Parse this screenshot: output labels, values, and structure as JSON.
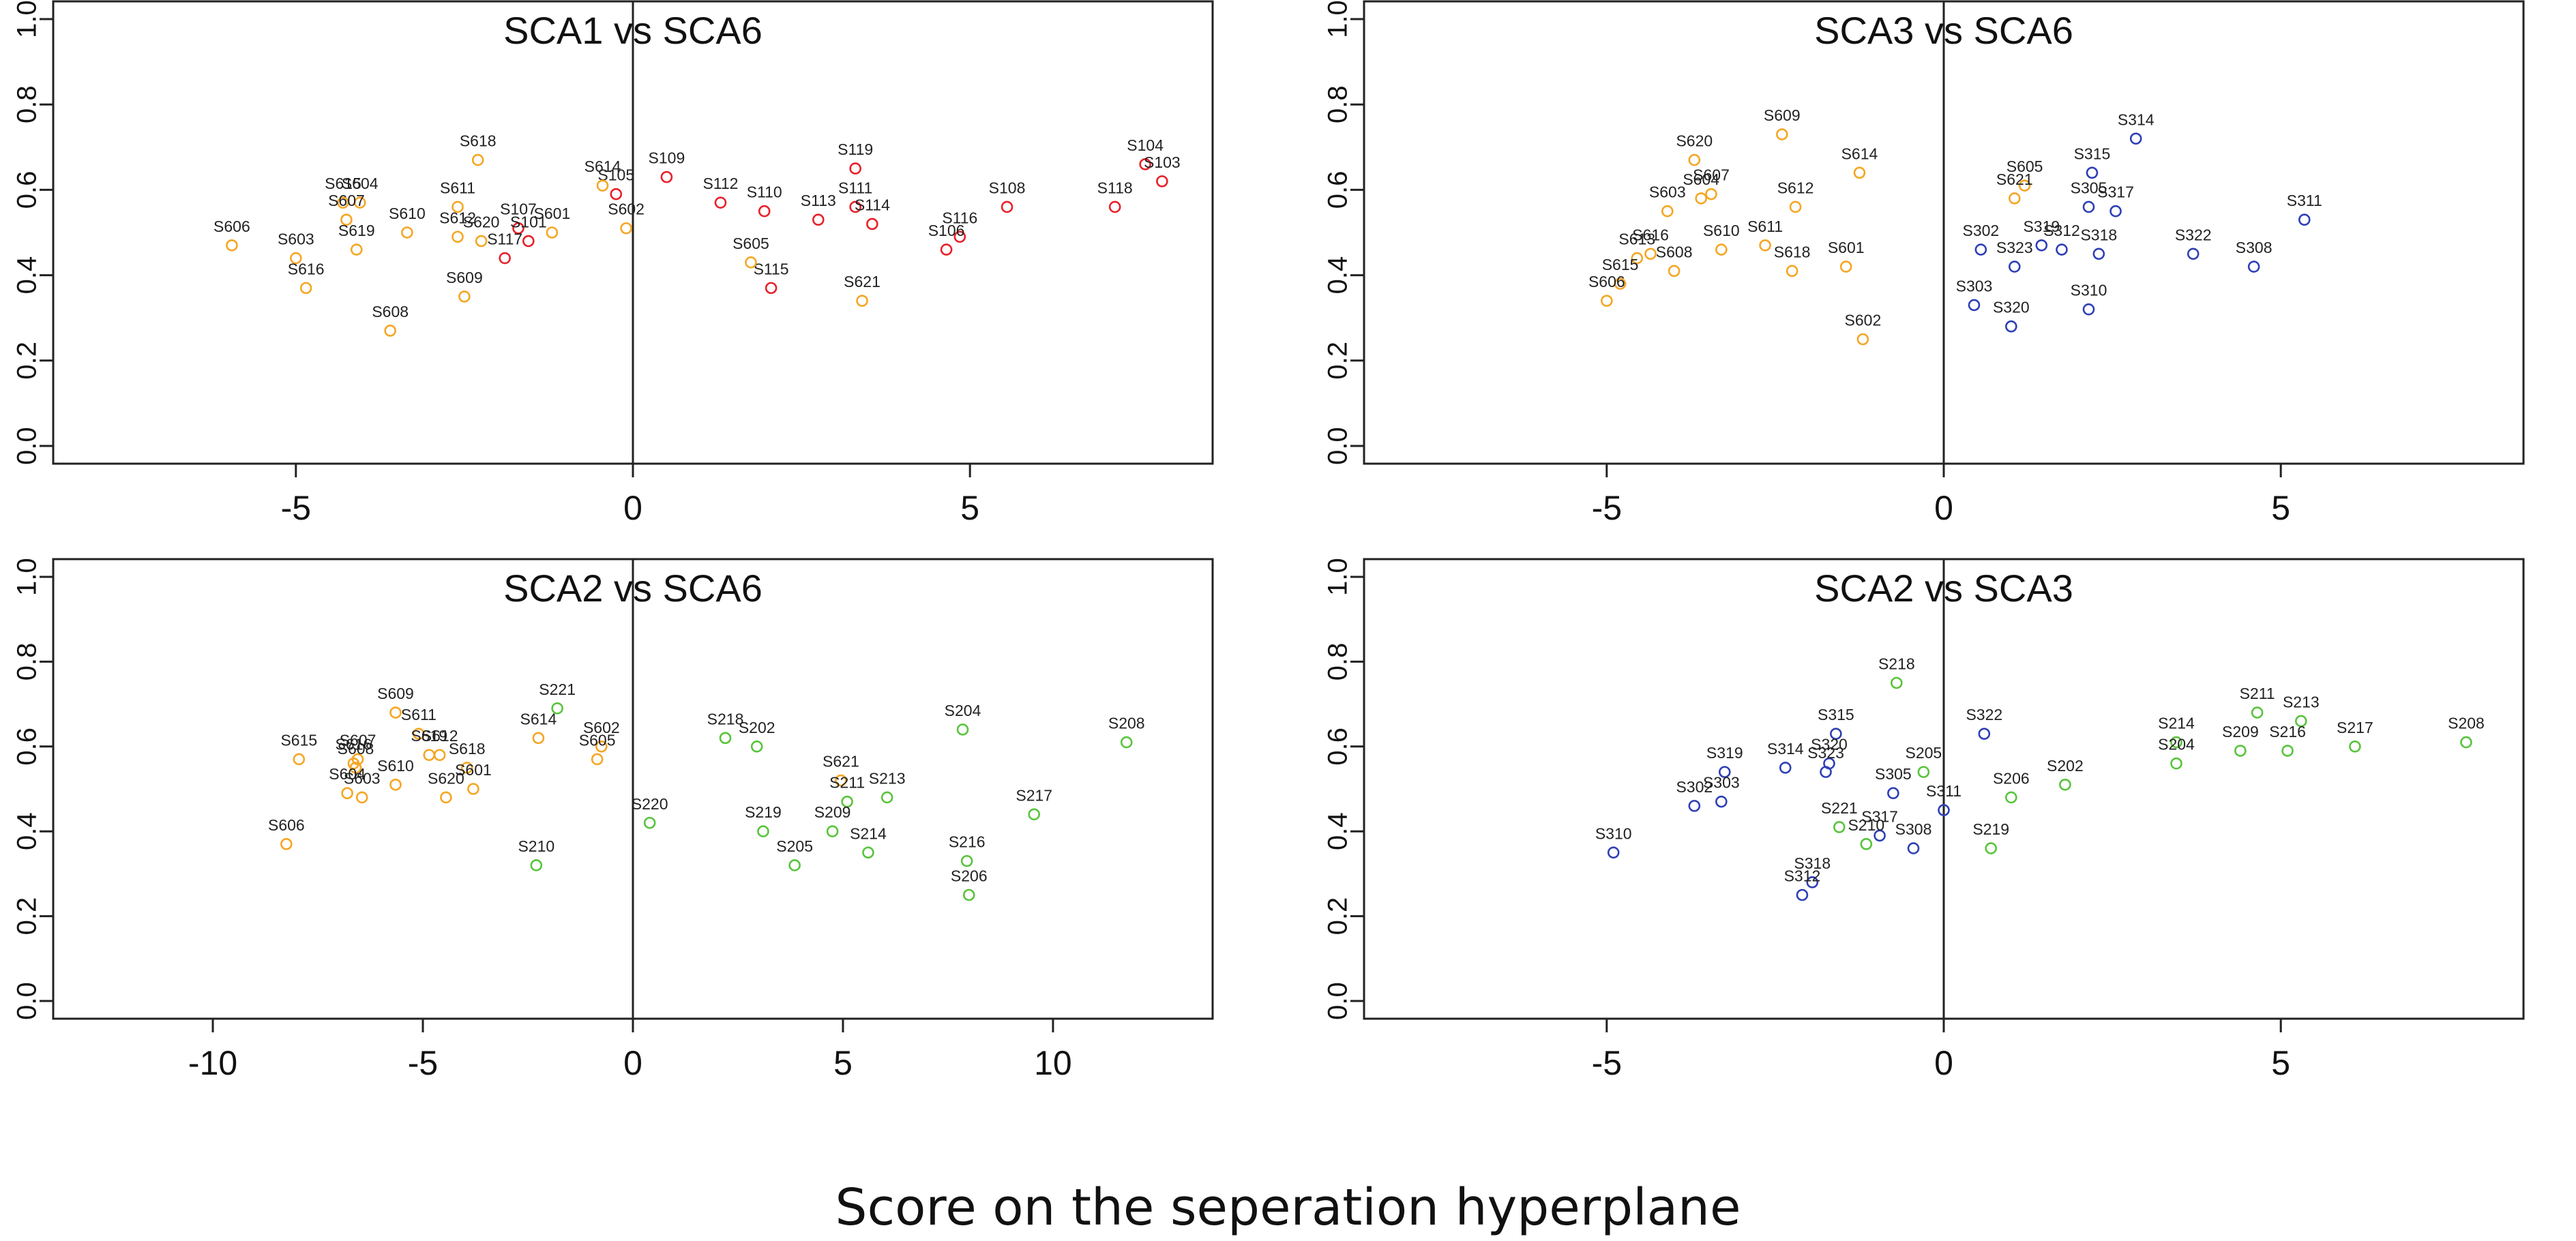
{
  "figure": {
    "xlabel": "Score on the seperation hyperplane",
    "colors": {
      "SCA1": "#e8202a",
      "SCA2": "#57c43a",
      "SCA3": "#2e3fb5",
      "SCA6": "#f5a623",
      "axis": "#222222"
    }
  },
  "chart_data": [
    {
      "type": "scatter",
      "title": "SCA1 vs SCA6",
      "xlim": [
        -8.6,
        8.6
      ],
      "ylim": [
        0,
        1
      ],
      "xticks": [
        -5,
        0,
        5
      ],
      "yticks": [
        0.0,
        0.2,
        0.4,
        0.6,
        0.8,
        1.0
      ],
      "ytick_labels": [
        "0.0",
        "0.2",
        "0.4",
        "0.6",
        "0.8",
        "1.0"
      ],
      "divider_x": 0,
      "series": [
        {
          "name": "SCA1",
          "color": "#e8202a",
          "points": [
            {
              "label": "S109",
              "x": 0.5,
              "y": 0.63
            },
            {
              "label": "S105",
              "x": -0.25,
              "y": 0.59
            },
            {
              "label": "S112",
              "x": 1.3,
              "y": 0.57
            },
            {
              "label": "S110",
              "x": 1.95,
              "y": 0.55
            },
            {
              "label": "S113",
              "x": 2.75,
              "y": 0.53
            },
            {
              "label": "S119",
              "x": 3.3,
              "y": 0.65
            },
            {
              "label": "S111",
              "x": 3.3,
              "y": 0.56
            },
            {
              "label": "S114",
              "x": 3.55,
              "y": 0.52
            },
            {
              "label": "S115",
              "x": 2.05,
              "y": 0.37
            },
            {
              "label": "S116",
              "x": 4.85,
              "y": 0.49
            },
            {
              "label": "S106",
              "x": 4.65,
              "y": 0.46
            },
            {
              "label": "S108",
              "x": 5.55,
              "y": 0.56
            },
            {
              "label": "S118",
              "x": 7.15,
              "y": 0.56
            },
            {
              "label": "S104",
              "x": 7.6,
              "y": 0.66
            },
            {
              "label": "S103",
              "x": 7.85,
              "y": 0.62
            },
            {
              "label": "S107",
              "x": -1.7,
              "y": 0.51
            },
            {
              "label": "S101",
              "x": -1.55,
              "y": 0.48
            },
            {
              "label": "S117",
              "x": -1.9,
              "y": 0.44
            }
          ]
        },
        {
          "name": "SCA6",
          "color": "#f5a623",
          "points": [
            {
              "label": "S606",
              "x": -5.95,
              "y": 0.47
            },
            {
              "label": "S603",
              "x": -5.0,
              "y": 0.44
            },
            {
              "label": "S616",
              "x": -4.85,
              "y": 0.37
            },
            {
              "label": "S615",
              "x": -4.3,
              "y": 0.57
            },
            {
              "label": "S604",
              "x": -4.05,
              "y": 0.57
            },
            {
              "label": "S607",
              "x": -4.25,
              "y": 0.53
            },
            {
              "label": "S619",
              "x": -4.1,
              "y": 0.46
            },
            {
              "label": "S608",
              "x": -3.6,
              "y": 0.27
            },
            {
              "label": "S610",
              "x": -3.35,
              "y": 0.5
            },
            {
              "label": "S611",
              "x": -2.6,
              "y": 0.56
            },
            {
              "label": "S618",
              "x": -2.3,
              "y": 0.67
            },
            {
              "label": "S612",
              "x": -2.6,
              "y": 0.49
            },
            {
              "label": "S620",
              "x": -2.25,
              "y": 0.48
            },
            {
              "label": "S609",
              "x": -2.5,
              "y": 0.35
            },
            {
              "label": "S601",
              "x": -1.2,
              "y": 0.5
            },
            {
              "label": "S614",
              "x": -0.45,
              "y": 0.61
            },
            {
              "label": "S602",
              "x": -0.1,
              "y": 0.51
            },
            {
              "label": "S605",
              "x": 1.75,
              "y": 0.43
            },
            {
              "label": "S621",
              "x": 3.4,
              "y": 0.34
            }
          ]
        }
      ]
    },
    {
      "type": "scatter",
      "title": "SCA3 vs SCA6",
      "xlim": [
        -8.6,
        8.6
      ],
      "ylim": [
        0,
        1
      ],
      "xticks": [
        -5,
        0,
        5
      ],
      "yticks": [
        0.0,
        0.2,
        0.4,
        0.6,
        0.8,
        1.0
      ],
      "ytick_labels": [
        "0.0",
        "0.2",
        "0.4",
        "0.6",
        "0.8",
        "1.0"
      ],
      "divider_x": 0,
      "series": [
        {
          "name": "SCA6",
          "color": "#f5a623",
          "points": [
            {
              "label": "S620",
              "x": -3.7,
              "y": 0.67
            },
            {
              "label": "S604",
              "x": -3.6,
              "y": 0.58
            },
            {
              "label": "S607",
              "x": -3.45,
              "y": 0.59
            },
            {
              "label": "S603",
              "x": -4.1,
              "y": 0.55
            },
            {
              "label": "S609",
              "x": -2.4,
              "y": 0.73
            },
            {
              "label": "S612",
              "x": -2.2,
              "y": 0.56
            },
            {
              "label": "S614",
              "x": -1.25,
              "y": 0.64
            },
            {
              "label": "S616",
              "x": -4.35,
              "y": 0.45
            },
            {
              "label": "S613",
              "x": -4.55,
              "y": 0.44
            },
            {
              "label": "S608",
              "x": -4.0,
              "y": 0.41
            },
            {
              "label": "S610",
              "x": -3.3,
              "y": 0.46
            },
            {
              "label": "S611",
              "x": -2.65,
              "y": 0.47
            },
            {
              "label": "S618",
              "x": -2.25,
              "y": 0.41
            },
            {
              "label": "S601",
              "x": -1.45,
              "y": 0.42
            },
            {
              "label": "S615",
              "x": -4.8,
              "y": 0.38
            },
            {
              "label": "S606",
              "x": -5.0,
              "y": 0.34
            },
            {
              "label": "S602",
              "x": -1.2,
              "y": 0.25
            },
            {
              "label": "S605",
              "x": 1.2,
              "y": 0.61
            },
            {
              "label": "S621",
              "x": 1.05,
              "y": 0.58
            }
          ]
        },
        {
          "name": "SCA3",
          "color": "#2e3fb5",
          "points": [
            {
              "label": "S314",
              "x": 2.85,
              "y": 0.72
            },
            {
              "label": "S315",
              "x": 2.2,
              "y": 0.64
            },
            {
              "label": "S305",
              "x": 2.15,
              "y": 0.56
            },
            {
              "label": "S317",
              "x": 2.55,
              "y": 0.55
            },
            {
              "label": "S311",
              "x": 5.35,
              "y": 0.53
            },
            {
              "label": "S302",
              "x": 0.55,
              "y": 0.46
            },
            {
              "label": "S319",
              "x": 1.45,
              "y": 0.47
            },
            {
              "label": "S312",
              "x": 1.75,
              "y": 0.46
            },
            {
              "label": "S323",
              "x": 1.05,
              "y": 0.42
            },
            {
              "label": "S318",
              "x": 2.3,
              "y": 0.45
            },
            {
              "label": "S322",
              "x": 3.7,
              "y": 0.45
            },
            {
              "label": "S308",
              "x": 4.6,
              "y": 0.42
            },
            {
              "label": "S303",
              "x": 0.45,
              "y": 0.33
            },
            {
              "label": "S320",
              "x": 1.0,
              "y": 0.28
            },
            {
              "label": "S310",
              "x": 2.15,
              "y": 0.32
            }
          ]
        }
      ]
    },
    {
      "type": "scatter",
      "title": "SCA2 vs SCA6",
      "xlim": [
        -13.8,
        13.8
      ],
      "ylim": [
        0,
        1
      ],
      "xticks": [
        -10,
        -5,
        0,
        5,
        10
      ],
      "yticks": [
        0.0,
        0.2,
        0.4,
        0.6,
        0.8,
        1.0
      ],
      "ytick_labels": [
        "0.0",
        "0.2",
        "0.4",
        "0.6",
        "0.8",
        "1.0"
      ],
      "divider_x": 0,
      "series": [
        {
          "name": "SCA6",
          "color": "#f5a623",
          "points": [
            {
              "label": "S615",
              "x": -7.95,
              "y": 0.57
            },
            {
              "label": "S606",
              "x": -8.25,
              "y": 0.37
            },
            {
              "label": "S609",
              "x": -5.65,
              "y": 0.68
            },
            {
              "label": "S611",
              "x": -5.1,
              "y": 0.63
            },
            {
              "label": "S607",
              "x": -6.55,
              "y": 0.57
            },
            {
              "label": "S616",
              "x": -6.65,
              "y": 0.56
            },
            {
              "label": "S608",
              "x": -6.6,
              "y": 0.55
            },
            {
              "label": "S619",
              "x": -4.85,
              "y": 0.58
            },
            {
              "label": "S612",
              "x": -4.6,
              "y": 0.58
            },
            {
              "label": "S618",
              "x": -3.95,
              "y": 0.55
            },
            {
              "label": "S604",
              "x": -6.8,
              "y": 0.49
            },
            {
              "label": "S603",
              "x": -6.45,
              "y": 0.48
            },
            {
              "label": "S610",
              "x": -5.65,
              "y": 0.51
            },
            {
              "label": "S620",
              "x": -4.45,
              "y": 0.48
            },
            {
              "label": "S601",
              "x": -3.8,
              "y": 0.5
            },
            {
              "label": "S614",
              "x": -2.25,
              "y": 0.62
            },
            {
              "label": "S602",
              "x": -0.75,
              "y": 0.6
            },
            {
              "label": "S605",
              "x": -0.85,
              "y": 0.57
            },
            {
              "label": "S621",
              "x": 4.95,
              "y": 0.52
            }
          ]
        },
        {
          "name": "SCA2",
          "color": "#57c43a",
          "points": [
            {
              "label": "S221",
              "x": -1.8,
              "y": 0.69
            },
            {
              "label": "S210",
              "x": -2.3,
              "y": 0.32
            },
            {
              "label": "S220",
              "x": 0.4,
              "y": 0.42
            },
            {
              "label": "S218",
              "x": 2.2,
              "y": 0.62
            },
            {
              "label": "S202",
              "x": 2.95,
              "y": 0.6
            },
            {
              "label": "S211",
              "x": 5.1,
              "y": 0.47
            },
            {
              "label": "S213",
              "x": 6.05,
              "y": 0.48
            },
            {
              "label": "S219",
              "x": 3.1,
              "y": 0.4
            },
            {
              "label": "S209",
              "x": 4.75,
              "y": 0.4
            },
            {
              "label": "S205",
              "x": 3.85,
              "y": 0.32
            },
            {
              "label": "S214",
              "x": 5.6,
              "y": 0.35
            },
            {
              "label": "S204",
              "x": 7.85,
              "y": 0.64
            },
            {
              "label": "S208",
              "x": 11.75,
              "y": 0.61
            },
            {
              "label": "S217",
              "x": 9.55,
              "y": 0.44
            },
            {
              "label": "S216",
              "x": 7.95,
              "y": 0.33
            },
            {
              "label": "S206",
              "x": 8.0,
              "y": 0.25
            }
          ]
        }
      ]
    },
    {
      "type": "scatter",
      "title": "SCA2 vs SCA3",
      "xlim": [
        -8.6,
        8.6
      ],
      "ylim": [
        0,
        1
      ],
      "xticks": [
        -5,
        0,
        5
      ],
      "yticks": [
        0.0,
        0.2,
        0.4,
        0.6,
        0.8,
        1.0
      ],
      "ytick_labels": [
        "0.0",
        "0.2",
        "0.4",
        "0.6",
        "0.8",
        "1.0"
      ],
      "divider_x": 0,
      "series": [
        {
          "name": "SCA3",
          "color": "#2e3fb5",
          "points": [
            {
              "label": "S310",
              "x": -4.9,
              "y": 0.35
            },
            {
              "label": "S319",
              "x": -3.25,
              "y": 0.54
            },
            {
              "label": "S302",
              "x": -3.7,
              "y": 0.46
            },
            {
              "label": "S303",
              "x": -3.3,
              "y": 0.47
            },
            {
              "label": "S314",
              "x": -2.35,
              "y": 0.55
            },
            {
              "label": "S315",
              "x": -1.6,
              "y": 0.63
            },
            {
              "label": "S320",
              "x": -1.7,
              "y": 0.56
            },
            {
              "label": "S323",
              "x": -1.75,
              "y": 0.54
            },
            {
              "label": "S305",
              "x": -0.75,
              "y": 0.49
            },
            {
              "label": "S317",
              "x": -0.95,
              "y": 0.39
            },
            {
              "label": "S308",
              "x": -0.45,
              "y": 0.36
            },
            {
              "label": "S311",
              "x": 0.0,
              "y": 0.45
            },
            {
              "label": "S322",
              "x": 0.6,
              "y": 0.63
            },
            {
              "label": "S318",
              "x": -1.95,
              "y": 0.28
            },
            {
              "label": "S312",
              "x": -2.1,
              "y": 0.25
            }
          ]
        },
        {
          "name": "SCA2",
          "color": "#57c43a",
          "points": [
            {
              "label": "S218",
              "x": -0.7,
              "y": 0.75
            },
            {
              "label": "S205",
              "x": -0.3,
              "y": 0.54
            },
            {
              "label": "S221",
              "x": -1.55,
              "y": 0.41
            },
            {
              "label": "S210",
              "x": -1.15,
              "y": 0.37
            },
            {
              "label": "S219",
              "x": 0.7,
              "y": 0.36
            },
            {
              "label": "S206",
              "x": 1.0,
              "y": 0.48
            },
            {
              "label": "S202",
              "x": 1.8,
              "y": 0.51
            },
            {
              "label": "S214",
              "x": 3.45,
              "y": 0.61
            },
            {
              "label": "S204",
              "x": 3.45,
              "y": 0.56
            },
            {
              "label": "S209",
              "x": 4.4,
              "y": 0.59
            },
            {
              "label": "S211",
              "x": 4.65,
              "y": 0.68
            },
            {
              "label": "S213",
              "x": 5.3,
              "y": 0.66
            },
            {
              "label": "S216",
              "x": 5.1,
              "y": 0.59
            },
            {
              "label": "S217",
              "x": 6.1,
              "y": 0.6
            },
            {
              "label": "S208",
              "x": 7.75,
              "y": 0.61
            }
          ]
        }
      ]
    }
  ]
}
